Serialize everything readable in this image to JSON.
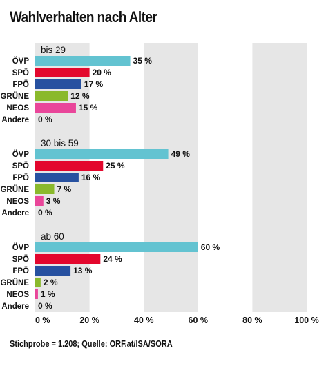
{
  "title": "Wahlverhalten nach Alter",
  "source": "Stichprobe = 1.208; Quelle: ORF.at/ISA/SORA",
  "colors": {
    "band": "#e6e6e6",
    "text": "#111111",
    "parties": {
      "ÖVP": "#63c3d1",
      "SPÖ": "#e3072d",
      "FPÖ": "#2751a0",
      "GRÜNE": "#8ab92c",
      "NEOS": "#e9469a",
      "Andere": "#9b9b9b"
    }
  },
  "chart_data": {
    "type": "bar",
    "orientation": "horizontal",
    "xlim": [
      0,
      100
    ],
    "x_ticks": [
      "0 %",
      "20 %",
      "40 %",
      "60 %",
      "80 %",
      "100 %"
    ],
    "categories": [
      "ÖVP",
      "SPÖ",
      "FPÖ",
      "GRÜNE",
      "NEOS",
      "Andere"
    ],
    "groups": [
      {
        "label": "bis 29",
        "values": [
          35,
          20,
          17,
          12,
          15,
          0
        ],
        "value_labels": [
          "35 %",
          "20 %",
          "17 %",
          "12 %",
          "15 %",
          "0 %"
        ]
      },
      {
        "label": "30 bis 59",
        "values": [
          49,
          25,
          16,
          7,
          3,
          0
        ],
        "value_labels": [
          "49 %",
          "25 %",
          "16 %",
          "7 %",
          "3 %",
          "0 %"
        ]
      },
      {
        "label": "ab 60",
        "values": [
          60,
          24,
          13,
          2,
          1,
          0
        ],
        "value_labels": [
          "60 %",
          "24 %",
          "13 %",
          "2 %",
          "1 %",
          "0 %"
        ]
      }
    ]
  }
}
